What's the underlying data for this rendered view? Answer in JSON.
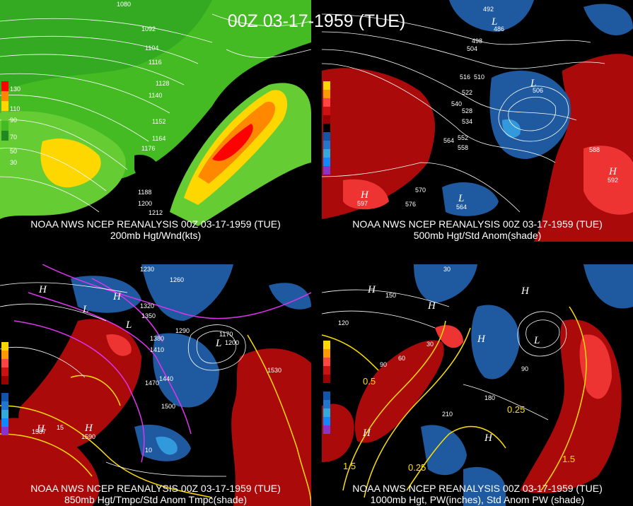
{
  "title": "00Z 03-17-1959 (TUE)",
  "panels": [
    {
      "id": "p1",
      "caption_line1": "NOAA NWS NCEP REANALYSIS 00Z 03-17-1959 (TUE)",
      "caption_line2": "200mb Hgt/Wnd(kts)",
      "legend": [
        "130",
        "110",
        "90",
        "70",
        "50",
        "30"
      ],
      "legend_colors": [
        "#ff0000",
        "#ff8800",
        "#ffd700",
        "#66cc33",
        "#44bb22",
        "#228822"
      ],
      "labels": [
        "1080",
        "1092",
        "1104",
        "1116",
        "1128",
        "1140",
        "1152",
        "1164",
        "1176",
        "1188",
        "1200",
        "1212"
      ]
    },
    {
      "id": "p2",
      "caption_line1": "NOAA NWS NCEP REANALYSIS 00Z 03-17-1959 (TUE)",
      "caption_line2": "500mb Hgt/Std Anom(shade)",
      "legend": [
        "5",
        "4",
        "3",
        "2",
        "1",
        "0",
        "1",
        "2",
        "3",
        "4",
        "5"
      ],
      "legend_colors": [
        "#ffd700",
        "#ff9900",
        "#ff4444",
        "#cc1111",
        "#990000",
        "#000000",
        "#1155aa",
        "#2277cc",
        "#33aadd",
        "#1188ff",
        "#8833cc"
      ],
      "labels": [
        "492",
        "498",
        "504",
        "510",
        "516",
        "522",
        "528",
        "534",
        "540",
        "552",
        "558",
        "564",
        "570",
        "576",
        "588",
        "592",
        "597",
        "564",
        "506",
        "486"
      ]
    },
    {
      "id": "p3",
      "caption_line1": "NOAA NWS NCEP REANALYSIS 00Z 03-17-1959 (TUE)",
      "caption_line2": "850mb Hgt/Tmpc/Std Anom Tmpc(shade)",
      "legend": [
        "5",
        "4",
        "3",
        "2",
        "1",
        "0",
        "1",
        "2",
        "3",
        "4",
        "5"
      ],
      "legend_colors": [
        "#ffd700",
        "#ff9900",
        "#ff4444",
        "#cc1111",
        "#990000",
        "#000000",
        "#1155aa",
        "#2277cc",
        "#33aadd",
        "#1188ff",
        "#8833cc"
      ],
      "labels": [
        "1230",
        "1260",
        "1290",
        "1320",
        "1350",
        "1380",
        "1410",
        "1440",
        "1470",
        "1500",
        "1530",
        "1170",
        "1200",
        "1587",
        "1590",
        "15",
        "10"
      ]
    },
    {
      "id": "p4",
      "caption_line1": "NOAA NWS NCEP REANALYSIS 00Z 03-17-1959 (TUE)",
      "caption_line2": "1000mb Hgt, PW(inches), Std Anom PW (shade)",
      "legend": [
        "5",
        "4",
        "3",
        "2",
        "1",
        "0",
        "1",
        "2",
        "3",
        "4",
        "5"
      ],
      "legend_colors": [
        "#ffd700",
        "#ff9900",
        "#ff4444",
        "#cc1111",
        "#990000",
        "#000000",
        "#1155aa",
        "#2277cc",
        "#33aadd",
        "#1188ff",
        "#8833cc"
      ],
      "labels": [
        "30",
        "60",
        "90",
        "120",
        "150",
        "180",
        "210",
        "0.5",
        "0.25",
        "1.5",
        "1.5",
        "0.25"
      ]
    }
  ]
}
